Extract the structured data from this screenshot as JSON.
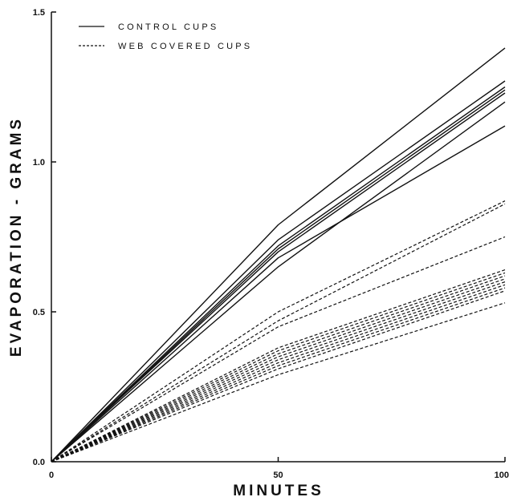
{
  "chart_data": {
    "type": "line",
    "xlabel": "MINUTES",
    "ylabel": "EVAPORATION - GRAMS",
    "xlim": [
      0,
      100
    ],
    "ylim": [
      0,
      1.5
    ],
    "x_ticks": [
      0,
      50,
      100
    ],
    "x_tick_labels": [
      "0",
      "50",
      "100"
    ],
    "y_ticks": [
      0,
      0.5,
      1.0,
      1.5
    ],
    "y_tick_labels": [
      "0.0",
      "0.5",
      "1.0",
      "1.5"
    ],
    "grid": false,
    "legend_position": "top-left",
    "legend": [
      {
        "label": "CONTROL CUPS",
        "style": "solid"
      },
      {
        "label": "WEB COVERED CUPS",
        "style": "dashed"
      }
    ],
    "series": [
      {
        "group": "CONTROL CUPS",
        "style": "solid",
        "x": [
          0,
          50,
          100
        ],
        "y": [
          0,
          0.79,
          1.38
        ]
      },
      {
        "group": "CONTROL CUPS",
        "style": "solid",
        "x": [
          0,
          50,
          100
        ],
        "y": [
          0,
          0.74,
          1.27
        ]
      },
      {
        "group": "CONTROL CUPS",
        "style": "solid",
        "x": [
          0,
          50,
          100
        ],
        "y": [
          0,
          0.72,
          1.25
        ]
      },
      {
        "group": "CONTROL CUPS",
        "style": "solid",
        "x": [
          0,
          50,
          100
        ],
        "y": [
          0,
          0.71,
          1.24
        ]
      },
      {
        "group": "CONTROL CUPS",
        "style": "solid",
        "x": [
          0,
          50,
          100
        ],
        "y": [
          0,
          0.7,
          1.23
        ]
      },
      {
        "group": "CONTROL CUPS",
        "style": "solid",
        "x": [
          0,
          50,
          100
        ],
        "y": [
          0,
          0.68,
          1.12
        ]
      },
      {
        "group": "CONTROL CUPS",
        "style": "solid",
        "x": [
          0,
          50,
          100
        ],
        "y": [
          0,
          0.65,
          1.2
        ]
      },
      {
        "group": "WEB COVERED CUPS",
        "style": "dashed",
        "x": [
          0,
          50,
          100
        ],
        "y": [
          0,
          0.5,
          0.87
        ]
      },
      {
        "group": "WEB COVERED CUPS",
        "style": "dashed",
        "x": [
          0,
          50,
          100
        ],
        "y": [
          0,
          0.47,
          0.86
        ]
      },
      {
        "group": "WEB COVERED CUPS",
        "style": "dashed",
        "x": [
          0,
          50,
          100
        ],
        "y": [
          0,
          0.45,
          0.75
        ]
      },
      {
        "group": "WEB COVERED CUPS",
        "style": "dashed",
        "x": [
          0,
          50,
          100
        ],
        "y": [
          0,
          0.38,
          0.64
        ]
      },
      {
        "group": "WEB COVERED CUPS",
        "style": "dashed",
        "x": [
          0,
          50,
          100
        ],
        "y": [
          0,
          0.37,
          0.63
        ]
      },
      {
        "group": "WEB COVERED CUPS",
        "style": "dashed",
        "x": [
          0,
          50,
          100
        ],
        "y": [
          0,
          0.36,
          0.62
        ]
      },
      {
        "group": "WEB COVERED CUPS",
        "style": "dashed",
        "x": [
          0,
          50,
          100
        ],
        "y": [
          0,
          0.35,
          0.61
        ]
      },
      {
        "group": "WEB COVERED CUPS",
        "style": "dashed",
        "x": [
          0,
          50,
          100
        ],
        "y": [
          0,
          0.34,
          0.6
        ]
      },
      {
        "group": "WEB COVERED CUPS",
        "style": "dashed",
        "x": [
          0,
          50,
          100
        ],
        "y": [
          0,
          0.33,
          0.59
        ]
      },
      {
        "group": "WEB COVERED CUPS",
        "style": "dashed",
        "x": [
          0,
          50,
          100
        ],
        "y": [
          0,
          0.32,
          0.58
        ]
      },
      {
        "group": "WEB COVERED CUPS",
        "style": "dashed",
        "x": [
          0,
          50,
          100
        ],
        "y": [
          0,
          0.31,
          0.57
        ]
      },
      {
        "group": "WEB COVERED CUPS",
        "style": "dashed",
        "x": [
          0,
          50,
          100
        ],
        "y": [
          0,
          0.29,
          0.53
        ]
      }
    ]
  }
}
